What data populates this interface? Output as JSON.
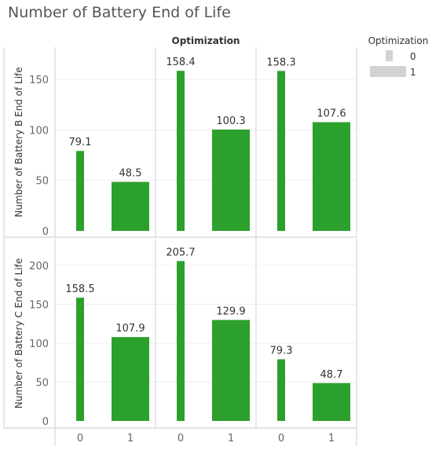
{
  "title": "Number of Battery End of Life",
  "chart_data": {
    "type": "bar",
    "column_header": "Optimization",
    "column_panels": 3,
    "categories": [
      "0",
      "1"
    ],
    "bar_color": "#2ca02c",
    "rows": [
      {
        "ylabel": "Number of Battery B End of Life",
        "ylim": [
          0,
          175
        ],
        "yticks": [
          0,
          50,
          100,
          150
        ],
        "panels": [
          {
            "values": [
              79.1,
              48.5
            ],
            "labels": [
              "79.1",
              "48.5"
            ]
          },
          {
            "values": [
              158.4,
              100.3
            ],
            "labels": [
              "158.4",
              "100.3"
            ]
          },
          {
            "values": [
              158.3,
              107.6
            ],
            "labels": [
              "158.3",
              "107.6"
            ]
          }
        ]
      },
      {
        "ylabel": "Number of Battery C End of Life",
        "ylim": [
          0,
          215
        ],
        "yticks": [
          0,
          50,
          100,
          150,
          200
        ],
        "panels": [
          {
            "values": [
              158.5,
              107.9
            ],
            "labels": [
              "158.5",
              "107.9"
            ]
          },
          {
            "values": [
              205.7,
              129.9
            ],
            "labels": [
              "205.7",
              "129.9"
            ]
          },
          {
            "values": [
              79.3,
              48.7
            ],
            "labels": [
              "79.3",
              "48.7"
            ]
          }
        ]
      }
    ],
    "legend": {
      "title": "Optimization",
      "entries": [
        "0",
        "1"
      ],
      "note": "bar width encodes Optimization",
      "placement": "top-right"
    },
    "grid": true
  }
}
